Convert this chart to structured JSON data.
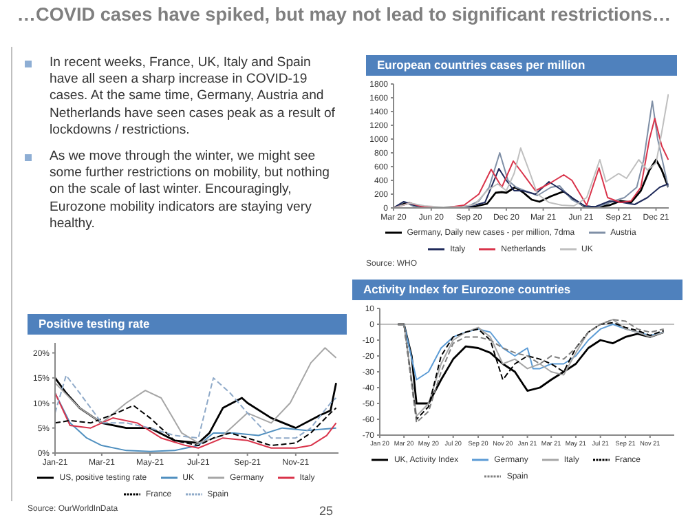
{
  "chart_data": [
    {
      "type": "other",
      "title": "…COVID cases have spiked, but may not lead to significant restrictions…",
      "annotations": [
        "In recent weeks, France, UK, Italy and Spain have all seen a sharp increase in COVID-19 cases. At the same time, Germany, Austria and Netherlands have seen cases peak as a result of lockdowns / restrictions.",
        "As we move through the winter, we might see some further restrictions on mobility, but nothing on the scale of last winter. Encouragingly, Eurozone mobility indicators are staying very healthy.",
        "25"
      ]
    },
    {
      "type": "line",
      "title": "European countries cases per million",
      "xlim": [
        "2020-03-01",
        "2022-01-01"
      ],
      "xticks": [
        {
          "value": "2020-03-01",
          "label": "Mar 20"
        },
        {
          "value": "2020-06-01",
          "label": "Jun 20"
        },
        {
          "value": "2020-09-01",
          "label": "Sep 20"
        },
        {
          "value": "2020-12-01",
          "label": "Dec 20"
        },
        {
          "value": "2021-03-01",
          "label": "Mar 21"
        },
        {
          "value": "2021-06-01",
          "label": "Jun 21"
        },
        {
          "value": "2021-09-01",
          "label": "Sep 21"
        },
        {
          "value": "2021-12-01",
          "label": "Dec 21"
        }
      ],
      "ylim": [
        0,
        1800
      ],
      "yticks": [
        0,
        200,
        400,
        600,
        800,
        1000,
        1200,
        1400,
        1600,
        1800
      ],
      "legend": "bottom",
      "annotations": [
        "Source: WHO"
      ],
      "series": [
        {
          "name": "Germany, Daily new cases - per million, 7dma",
          "color": "#000000",
          "x": [
            "2020-03-01",
            "2020-03-25",
            "2020-04-10",
            "2020-05-01",
            "2020-06-01",
            "2020-07-01",
            "2020-08-15",
            "2020-09-15",
            "2020-10-15",
            "2020-11-05",
            "2020-11-20",
            "2020-12-01",
            "2020-12-22",
            "2021-01-10",
            "2021-02-01",
            "2021-02-20",
            "2021-03-20",
            "2021-04-20",
            "2021-05-15",
            "2021-06-10",
            "2021-07-10",
            "2021-08-10",
            "2021-09-05",
            "2021-10-01",
            "2021-10-25",
            "2021-11-15",
            "2021-12-01",
            "2021-12-15",
            "2021-12-31"
          ],
          "values": [
            0,
            60,
            70,
            20,
            5,
            5,
            15,
            20,
            60,
            220,
            230,
            220,
            300,
            230,
            120,
            90,
            170,
            240,
            120,
            20,
            10,
            40,
            100,
            80,
            250,
            550,
            700,
            550,
            300
          ]
        },
        {
          "name": "Austria",
          "color": "#7f8fa6",
          "x": [
            "2020-03-01",
            "2020-03-28",
            "2020-04-20",
            "2020-05-15",
            "2020-07-15",
            "2020-09-01",
            "2020-09-25",
            "2020-10-20",
            "2020-11-15",
            "2020-12-05",
            "2020-12-25",
            "2021-01-15",
            "2021-02-15",
            "2021-03-20",
            "2021-04-10",
            "2021-05-10",
            "2021-06-15",
            "2021-07-15",
            "2021-08-20",
            "2021-09-15",
            "2021-10-15",
            "2021-11-01",
            "2021-11-22",
            "2021-12-05",
            "2021-12-31"
          ],
          "values": [
            0,
            90,
            20,
            5,
            10,
            30,
            100,
            300,
            800,
            400,
            300,
            250,
            180,
            300,
            320,
            120,
            10,
            20,
            100,
            150,
            300,
            700,
            1550,
            1000,
            300
          ]
        },
        {
          "name": "Italy",
          "color": "#1f2a5a",
          "x": [
            "2020-03-01",
            "2020-03-25",
            "2020-04-20",
            "2020-05-20",
            "2020-07-15",
            "2020-09-01",
            "2020-10-10",
            "2020-11-13",
            "2020-12-01",
            "2020-12-20",
            "2021-01-10",
            "2021-02-10",
            "2021-03-15",
            "2021-04-10",
            "2021-05-10",
            "2021-06-10",
            "2021-07-05",
            "2021-08-10",
            "2021-09-10",
            "2021-10-10",
            "2021-11-10",
            "2021-12-10",
            "2021-12-31"
          ],
          "values": [
            0,
            90,
            40,
            10,
            5,
            20,
            80,
            570,
            400,
            250,
            250,
            200,
            380,
            280,
            150,
            30,
            15,
            100,
            80,
            50,
            150,
            300,
            350
          ]
        },
        {
          "name": "Netherlands",
          "color": "#d9334a",
          "x": [
            "2020-03-01",
            "2020-04-10",
            "2020-05-15",
            "2020-07-15",
            "2020-08-20",
            "2020-09-25",
            "2020-10-25",
            "2020-11-20",
            "2020-12-18",
            "2021-01-10",
            "2021-02-10",
            "2021-03-15",
            "2021-04-20",
            "2021-05-10",
            "2021-06-15",
            "2021-07-15",
            "2021-08-05",
            "2021-09-05",
            "2021-10-01",
            "2021-10-25",
            "2021-11-15",
            "2021-11-28",
            "2021-12-15",
            "2021-12-31"
          ],
          "values": [
            0,
            70,
            10,
            10,
            40,
            200,
            560,
            300,
            680,
            500,
            250,
            350,
            480,
            400,
            40,
            580,
            150,
            80,
            100,
            300,
            1000,
            1300,
            900,
            700
          ]
        },
        {
          "name": "UK",
          "color": "#bfbfbf",
          "x": [
            "2020-03-01",
            "2020-04-10",
            "2020-05-15",
            "2020-07-01",
            "2020-08-15",
            "2020-09-15",
            "2020-10-15",
            "2020-11-10",
            "2020-12-01",
            "2020-12-20",
            "2021-01-05",
            "2021-01-25",
            "2021-02-15",
            "2021-03-15",
            "2021-04-15",
            "2021-05-15",
            "2021-06-15",
            "2021-07-17",
            "2021-08-01",
            "2021-09-01",
            "2021-09-20",
            "2021-10-20",
            "2021-11-10",
            "2021-12-01",
            "2021-12-15",
            "2021-12-31"
          ],
          "values": [
            0,
            70,
            30,
            10,
            15,
            50,
            250,
            350,
            250,
            500,
            870,
            550,
            200,
            80,
            40,
            30,
            150,
            700,
            380,
            500,
            430,
            700,
            550,
            650,
            1100,
            1650
          ]
        }
      ]
    },
    {
      "type": "line",
      "title": "Positive testing rate",
      "xlim": [
        "2021-01-01",
        "2021-12-25"
      ],
      "xticks": [
        {
          "value": "2021-01-01",
          "label": "Jan-21"
        },
        {
          "value": "2021-03-01",
          "label": "Mar-21"
        },
        {
          "value": "2021-05-01",
          "label": "May-21"
        },
        {
          "value": "2021-07-01",
          "label": "Jul-21"
        },
        {
          "value": "2021-09-01",
          "label": "Sep-21"
        },
        {
          "value": "2021-11-01",
          "label": "Nov-21"
        }
      ],
      "ylim": [
        0,
        22
      ],
      "yticks": [
        {
          "value": 0,
          "label": "0%"
        },
        {
          "value": 5,
          "label": "5%"
        },
        {
          "value": 10,
          "label": "10%"
        },
        {
          "value": 15,
          "label": "15%"
        },
        {
          "value": 20,
          "label": "20%"
        }
      ],
      "legend": "bottom",
      "annotations": [
        "Source: OurWorldInData"
      ],
      "series": [
        {
          "name": "US, positive testing rate",
          "color": "#000000",
          "x": [
            "2021-01-01",
            "2021-01-15",
            "2021-02-01",
            "2021-03-01",
            "2021-04-01",
            "2021-05-01",
            "2021-06-01",
            "2021-07-01",
            "2021-07-15",
            "2021-08-01",
            "2021-08-25",
            "2021-09-01",
            "2021-10-01",
            "2021-11-01",
            "2021-12-01",
            "2021-12-15",
            "2021-12-22"
          ],
          "values": [
            15,
            12,
            9,
            6,
            5,
            5,
            2.5,
            2,
            4,
            9,
            11,
            10,
            7,
            5,
            7.5,
            8.5,
            14
          ]
        },
        {
          "name": "UK",
          "color": "#4f8fbf",
          "x": [
            "2021-01-01",
            "2021-01-20",
            "2021-02-10",
            "2021-03-01",
            "2021-04-01",
            "2021-05-01",
            "2021-06-01",
            "2021-07-01",
            "2021-07-20",
            "2021-08-15",
            "2021-09-15",
            "2021-10-15",
            "2021-11-15",
            "2021-12-22"
          ],
          "values": [
            12,
            6,
            3,
            1.5,
            0.5,
            0.3,
            0.5,
            1.5,
            4,
            4,
            3.5,
            5,
            4.5,
            5
          ]
        },
        {
          "name": "Germany",
          "color": "#a6a6a6",
          "x": [
            "2021-01-01",
            "2021-02-01",
            "2021-03-01",
            "2021-04-01",
            "2021-04-25",
            "2021-05-15",
            "2021-06-10",
            "2021-07-01",
            "2021-08-01",
            "2021-09-01",
            "2021-10-01",
            "2021-10-25",
            "2021-11-20",
            "2021-12-08",
            "2021-12-22"
          ],
          "values": [
            14,
            9,
            6,
            10,
            12.5,
            11,
            4,
            2,
            3.5,
            8,
            6,
            10,
            18,
            21,
            19
          ]
        },
        {
          "name": "Italy",
          "color": "#d9334a",
          "x": [
            "2021-01-01",
            "2021-01-20",
            "2021-02-15",
            "2021-03-15",
            "2021-04-15",
            "2021-05-15",
            "2021-06-15",
            "2021-07-01",
            "2021-08-01",
            "2021-09-01",
            "2021-10-01",
            "2021-11-01",
            "2021-11-20",
            "2021-12-10",
            "2021-12-22"
          ],
          "values": [
            12,
            5.5,
            5,
            7,
            6,
            3,
            1.5,
            1,
            3,
            2.5,
            1,
            1,
            1.5,
            3.5,
            6
          ]
        },
        {
          "name": "France",
          "color": "#000000",
          "line_style": "dashed",
          "x": [
            "2021-01-01",
            "2021-01-20",
            "2021-02-15",
            "2021-03-20",
            "2021-04-10",
            "2021-05-01",
            "2021-06-01",
            "2021-07-01",
            "2021-07-20",
            "2021-08-10",
            "2021-09-01",
            "2021-10-01",
            "2021-11-01",
            "2021-11-20",
            "2021-12-15",
            "2021-12-22"
          ],
          "values": [
            6,
            6.5,
            6,
            8,
            9.5,
            7,
            2.5,
            1.5,
            3,
            4,
            3,
            1.5,
            2,
            4,
            8,
            9
          ]
        },
        {
          "name": "Spain",
          "color": "#8ea9c8",
          "line_style": "dashed",
          "x": [
            "2021-01-01",
            "2021-01-15",
            "2021-02-01",
            "2021-03-01",
            "2021-04-01",
            "2021-05-01",
            "2021-06-01",
            "2021-07-01",
            "2021-07-20",
            "2021-08-10",
            "2021-09-01",
            "2021-10-01",
            "2021-11-01",
            "2021-11-20",
            "2021-12-15",
            "2021-12-22"
          ],
          "values": [
            8,
            15.5,
            12,
            6,
            6,
            5,
            3.5,
            3,
            15,
            12,
            8,
            3,
            3,
            5,
            10,
            11
          ]
        }
      ]
    },
    {
      "type": "line",
      "title": "Activity Index for Eurozone countries",
      "xlim": [
        "2020-01-01",
        "2021-12-31"
      ],
      "xticks": [
        {
          "value": "2020-01-01",
          "label": "Jan 20"
        },
        {
          "value": "2020-03-01",
          "label": "Mar 20"
        },
        {
          "value": "2020-05-01",
          "label": "May 20"
        },
        {
          "value": "2020-07-01",
          "label": "Jul 20"
        },
        {
          "value": "2020-09-01",
          "label": "Sep 20"
        },
        {
          "value": "2020-11-01",
          "label": "Nov 20"
        },
        {
          "value": "2021-01-01",
          "label": "Jan 21"
        },
        {
          "value": "2021-03-01",
          "label": "Mar 21"
        },
        {
          "value": "2021-05-01",
          "label": "May 21"
        },
        {
          "value": "2021-07-01",
          "label": "Jul 21"
        },
        {
          "value": "2021-09-01",
          "label": "Sep 21"
        },
        {
          "value": "2021-11-01",
          "label": "Nov 21"
        }
      ],
      "ylim": [
        -70,
        10
      ],
      "yticks": [
        -70,
        -60,
        -50,
        -40,
        -30,
        -20,
        -10,
        0,
        10
      ],
      "ref_lines": [
        {
          "axis": "y",
          "value": 0,
          "color": "#bfbfbf"
        }
      ],
      "legend": "bottom",
      "series": [
        {
          "name": "UK, Activity Index",
          "color": "#000000",
          "x": [
            "2020-02-15",
            "2020-03-01",
            "2020-03-20",
            "2020-04-01",
            "2020-05-01",
            "2020-06-01",
            "2020-07-01",
            "2020-08-01",
            "2020-09-01",
            "2020-10-01",
            "2020-11-01",
            "2020-12-01",
            "2021-01-01",
            "2021-02-01",
            "2021-03-01",
            "2021-04-01",
            "2021-05-01",
            "2021-06-01",
            "2021-07-01",
            "2021-08-01",
            "2021-09-01",
            "2021-10-01",
            "2021-11-01",
            "2021-12-05"
          ],
          "values": [
            0,
            0,
            -20,
            -50,
            -50,
            -35,
            -22,
            -14,
            -15,
            -18,
            -25,
            -30,
            -42,
            -40,
            -35,
            -30,
            -25,
            -15,
            -10,
            -12,
            -8,
            -6,
            -8,
            -5
          ]
        },
        {
          "name": "Germany",
          "color": "#5b9bd5",
          "x": [
            "2020-02-15",
            "2020-03-01",
            "2020-04-01",
            "2020-05-01",
            "2020-06-01",
            "2020-07-01",
            "2020-08-01",
            "2020-09-01",
            "2020-10-01",
            "2020-11-01",
            "2020-12-01",
            "2021-01-01",
            "2021-01-15",
            "2021-02-01",
            "2021-03-01",
            "2021-04-01",
            "2021-05-01",
            "2021-06-01",
            "2021-07-01",
            "2021-08-01",
            "2021-09-01",
            "2021-10-01",
            "2021-11-01",
            "2021-12-05"
          ],
          "values": [
            0,
            0,
            -35,
            -30,
            -15,
            -8,
            -5,
            -3,
            -5,
            -15,
            -20,
            -15,
            -28,
            -28,
            -25,
            -25,
            -20,
            -10,
            -3,
            0,
            -3,
            -5,
            -7,
            -5
          ]
        },
        {
          "name": "Italy",
          "color": "#a6a6a6",
          "x": [
            "2020-02-15",
            "2020-03-01",
            "2020-04-01",
            "2020-05-01",
            "2020-06-01",
            "2020-07-01",
            "2020-08-01",
            "2020-09-01",
            "2020-10-01",
            "2020-11-01",
            "2020-12-01",
            "2021-01-01",
            "2021-02-01",
            "2021-03-01",
            "2021-04-01",
            "2021-05-01",
            "2021-06-01",
            "2021-07-01",
            "2021-08-01",
            "2021-09-01",
            "2021-10-01",
            "2021-11-01",
            "2021-12-05"
          ],
          "values": [
            0,
            0,
            -58,
            -50,
            -25,
            -10,
            -5,
            -2,
            -8,
            -25,
            -22,
            -28,
            -25,
            -30,
            -32,
            -18,
            -5,
            0,
            3,
            -3,
            -5,
            -8,
            -5
          ]
        },
        {
          "name": "France",
          "color": "#000000",
          "line_style": "dashed",
          "x": [
            "2020-02-15",
            "2020-03-01",
            "2020-04-01",
            "2020-05-01",
            "2020-06-01",
            "2020-07-01",
            "2020-08-01",
            "2020-09-01",
            "2020-10-01",
            "2020-11-01",
            "2020-12-01",
            "2021-01-01",
            "2021-02-01",
            "2021-03-01",
            "2021-04-01",
            "2021-05-01",
            "2021-06-01",
            "2021-07-01",
            "2021-08-01",
            "2021-09-01",
            "2021-10-01",
            "2021-11-01",
            "2021-12-05"
          ],
          "values": [
            0,
            0,
            -60,
            -52,
            -20,
            -8,
            -5,
            -3,
            -10,
            -35,
            -25,
            -20,
            -22,
            -25,
            -30,
            -15,
            -5,
            0,
            1,
            -2,
            -4,
            -7,
            -4
          ]
        },
        {
          "name": "Spain",
          "color": "#7f7f7f",
          "line_style": "dashed",
          "x": [
            "2020-02-15",
            "2020-03-01",
            "2020-04-01",
            "2020-05-01",
            "2020-06-01",
            "2020-07-01",
            "2020-08-01",
            "2020-09-01",
            "2020-10-01",
            "2020-11-01",
            "2020-12-01",
            "2021-01-01",
            "2021-02-01",
            "2021-03-01",
            "2021-04-01",
            "2021-05-01",
            "2021-06-01",
            "2021-07-01",
            "2021-08-01",
            "2021-09-01",
            "2021-10-01",
            "2021-11-01",
            "2021-12-05"
          ],
          "values": [
            0,
            0,
            -62,
            -55,
            -30,
            -12,
            -8,
            -8,
            -10,
            -15,
            -18,
            -20,
            -25,
            -20,
            -22,
            -15,
            -5,
            0,
            3,
            2,
            -3,
            -5,
            -3
          ]
        }
      ]
    }
  ]
}
